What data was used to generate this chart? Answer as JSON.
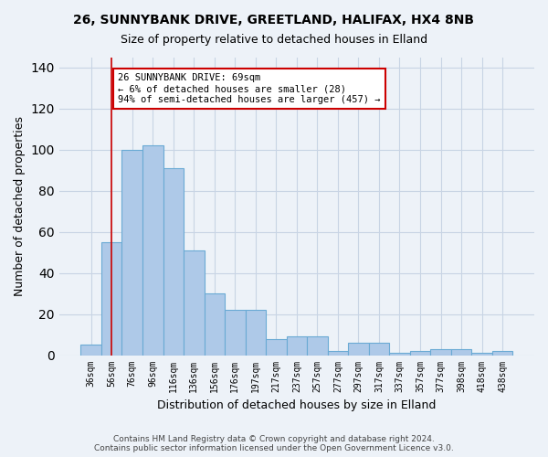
{
  "title1": "26, SUNNYBANK DRIVE, GREETLAND, HALIFAX, HX4 8NB",
  "title2": "Size of property relative to detached houses in Elland",
  "xlabel": "Distribution of detached houses by size in Elland",
  "ylabel": "Number of detached properties",
  "categories": [
    "36sqm",
    "56sqm",
    "76sqm",
    "96sqm",
    "116sqm",
    "136sqm",
    "156sqm",
    "176sqm",
    "197sqm",
    "217sqm",
    "237sqm",
    "257sqm",
    "277sqm",
    "297sqm",
    "317sqm",
    "337sqm",
    "357sqm",
    "377sqm",
    "398sqm",
    "418sqm",
    "438sqm"
  ],
  "values": [
    5,
    55,
    100,
    102,
    91,
    51,
    30,
    22,
    22,
    8,
    9,
    9,
    2,
    6,
    6,
    1,
    2,
    3,
    3,
    1,
    2
  ],
  "bar_color": "#aec9e8",
  "bar_edge_color": "#6aaad4",
  "grid_color": "#c8d4e4",
  "background_color": "#edf2f8",
  "vline_x": 1,
  "vline_color": "#cc0000",
  "annotation_text": "26 SUNNYBANK DRIVE: 69sqm\n← 6% of detached houses are smaller (28)\n94% of semi-detached houses are larger (457) →",
  "annotation_box_color": "#ffffff",
  "annotation_border_color": "#cc0000",
  "ylim": [
    0,
    145
  ],
  "footnote": "Contains HM Land Registry data © Crown copyright and database right 2024.\nContains public sector information licensed under the Open Government Licence v3.0."
}
